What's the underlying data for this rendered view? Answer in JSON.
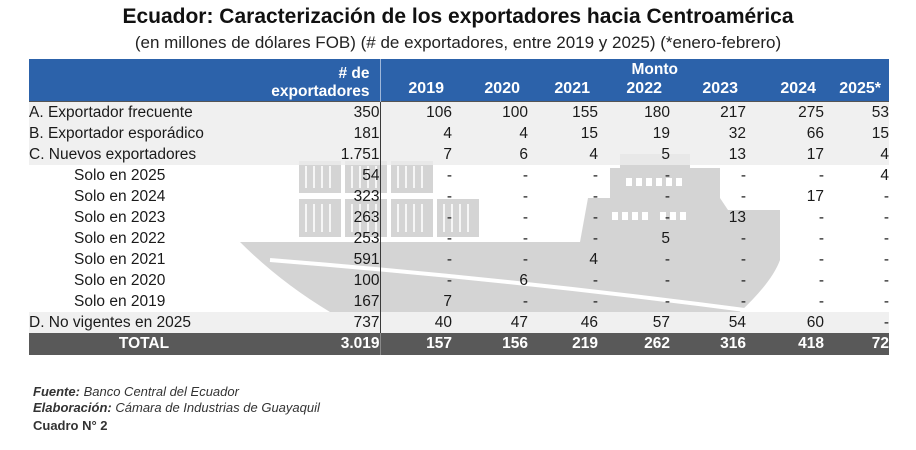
{
  "title": "Ecuador: Caracterización de los exportadores hacia Centroamérica",
  "subtitle": "(en millones de dólares FOB) (# de exportadores, entre 2019 y 2025) (*enero-febrero)",
  "header": {
    "count_label_1": "# de",
    "count_label_2": "exportadores",
    "monto_label": "Monto",
    "years": [
      "2019",
      "2020",
      "2021",
      "2022",
      "2023",
      "2024",
      "2025*"
    ]
  },
  "rows": [
    {
      "label": "A. Exportador frecuente",
      "count": "350",
      "values": [
        "106",
        "100",
        "155",
        "180",
        "217",
        "275",
        "53"
      ]
    },
    {
      "label": "B. Exportador esporádico",
      "count": "181",
      "values": [
        "4",
        "4",
        "15",
        "19",
        "32",
        "66",
        "15"
      ]
    },
    {
      "label": "C. Nuevos exportadores",
      "count": "1.751",
      "values": [
        "7",
        "6",
        "4",
        "5",
        "13",
        "17",
        "4"
      ]
    },
    {
      "label": "Solo en 2025",
      "count": "54",
      "values": [
        "-",
        "-",
        "-",
        "-",
        "-",
        "-",
        "4"
      ]
    },
    {
      "label": "Solo en 2024",
      "count": "323",
      "values": [
        "-",
        "-",
        "-",
        "-",
        "-",
        "17",
        "-"
      ]
    },
    {
      "label": "Solo en 2023",
      "count": "263",
      "values": [
        "-",
        "-",
        "-",
        "-",
        "13",
        "-",
        "-"
      ]
    },
    {
      "label": "Solo en 2022",
      "count": "253",
      "values": [
        "-",
        "-",
        "-",
        "5",
        "-",
        "-",
        "-"
      ]
    },
    {
      "label": "Solo en 2021",
      "count": "591",
      "values": [
        "-",
        "-",
        "4",
        "-",
        "-",
        "-",
        "-"
      ]
    },
    {
      "label": "Solo en 2020",
      "count": "100",
      "values": [
        "-",
        "6",
        "-",
        "-",
        "-",
        "-",
        "-"
      ]
    },
    {
      "label": "Solo en 2019",
      "count": "167",
      "values": [
        "7",
        "-",
        "-",
        "-",
        "-",
        "-",
        "-"
      ]
    },
    {
      "label": "D. No vigentes en 2025",
      "count": "737",
      "values": [
        "40",
        "47",
        "46",
        "57",
        "54",
        "60",
        "-"
      ]
    }
  ],
  "total": {
    "label": "TOTAL",
    "count": "3.019",
    "values": [
      "157",
      "156",
      "219",
      "262",
      "316",
      "418",
      "72"
    ]
  },
  "footer": {
    "source_label": "Fuente:",
    "source": "Banco Central del Ecuador",
    "elab_label": "Elaboración:",
    "elab": "Cámara de Industrias de Guayaquil",
    "cuadro": "Cuadro N° 2"
  },
  "colors": {
    "header": "#2c62aa",
    "total": "#595959",
    "ship": "#d4d4d4"
  }
}
